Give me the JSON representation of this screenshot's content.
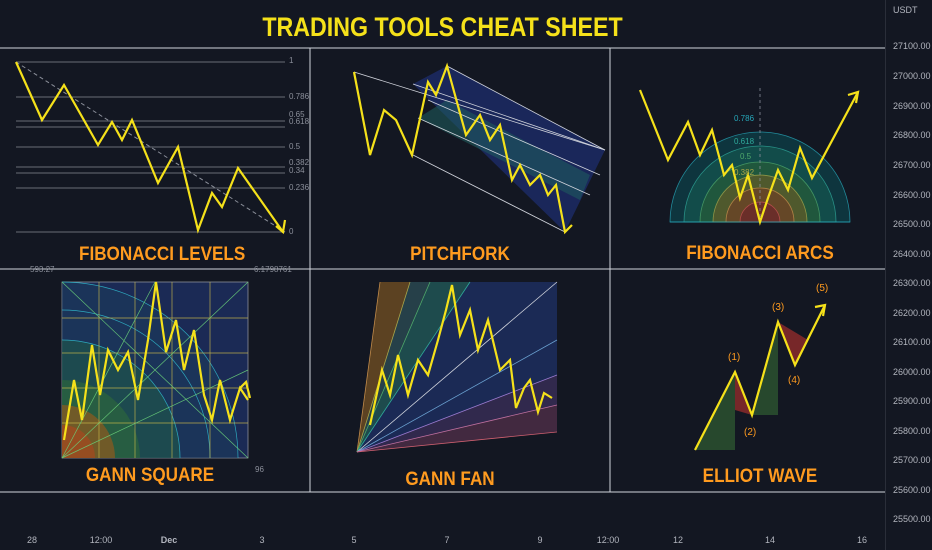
{
  "title": "TRADING TOOLS CHEAT SHEET",
  "currency": "USDT",
  "price_axis": [
    "27100.00",
    "27000.00",
    "26900.00",
    "26800.00",
    "26700.00",
    "26600.00",
    "26500.00",
    "26400.00",
    "26300.00",
    "26200.00",
    "26100.00",
    "26000.00",
    "25900.00",
    "25800.00",
    "25700.00",
    "25600.00",
    "25500.00"
  ],
  "time_axis": [
    "28",
    "12:00",
    "Dec",
    "3",
    "5",
    "7",
    "9",
    "12:00",
    "12",
    "14",
    "16"
  ],
  "panels": {
    "fib_levels": "FIBONACCI LEVELS",
    "pitchfork": "PITCHFORK",
    "fib_arcs": "FIBONACCI ARCS",
    "gann_square": "GANN SQUARE",
    "gann_fan": "GANN FAN",
    "elliot_wave": "ELLIOT WAVE"
  },
  "fib_level_values": [
    "1",
    "0.786",
    "0.65",
    "0.618",
    "0.5",
    "0.382",
    "0.34",
    "0.236",
    "0"
  ],
  "fib_arc_values": [
    "0.786",
    "0.618",
    "0.5",
    "0.382"
  ],
  "fib_level_extra": {
    "left": "593.27",
    "right": "6.1798761"
  },
  "gann_square_value": "96",
  "elliot_labels": [
    "(1)",
    "(2)",
    "(3)",
    "(4)",
    "(5)"
  ],
  "colors": {
    "background": "#131722",
    "title": "#f5e11a",
    "label": "#ff9b1f",
    "line": "#f5e11a",
    "divider": "#d1d4dc"
  }
}
